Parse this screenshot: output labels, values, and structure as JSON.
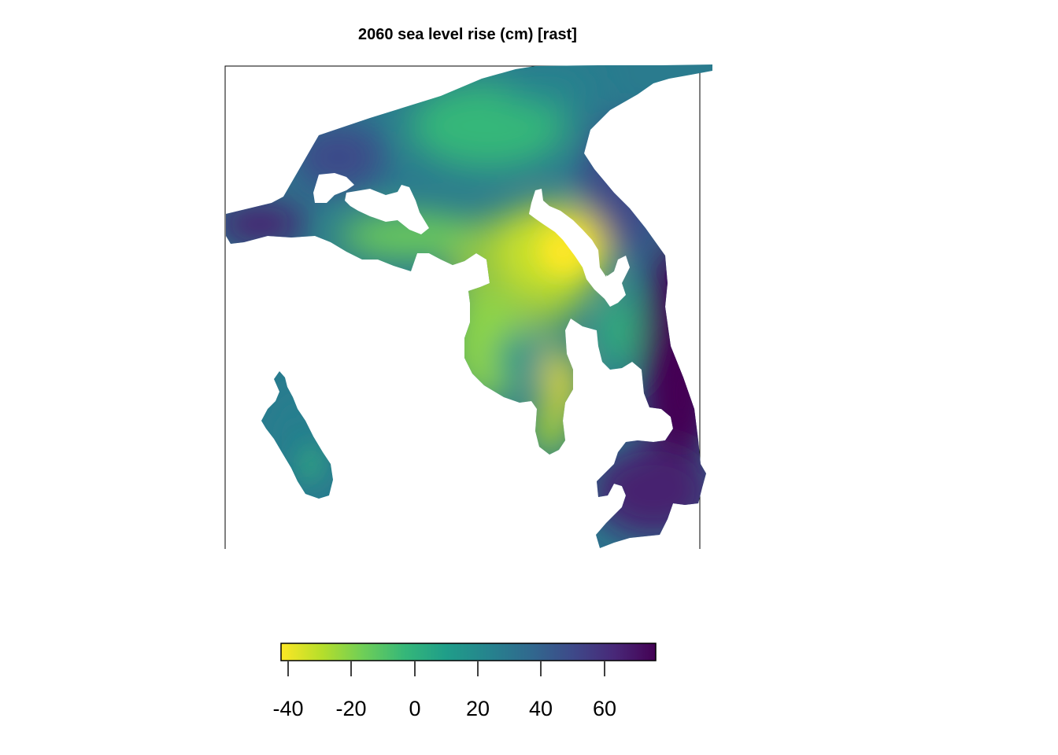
{
  "title": "2060 sea level rise (cm) [rast]",
  "legend": {
    "ticks": [
      -40,
      -20,
      0,
      20,
      40,
      60
    ],
    "tick_labels": [
      "-40",
      "-20",
      "0",
      "20",
      "40",
      "60"
    ],
    "range": [
      -42,
      76
    ],
    "palette": "viridis (reversed): yellow = low, dark purple = high",
    "color_stops": [
      "#fde725",
      "#b5de2b",
      "#6ece58",
      "#35b779",
      "#1f9e89",
      "#26828e",
      "#31688e",
      "#3e4989",
      "#482878",
      "#440154"
    ]
  },
  "chart_data": {
    "type": "heatmap",
    "title": "2060 sea level rise (cm) [rast]",
    "xlabel": "",
    "ylabel": "",
    "value_range": [
      -42,
      76
    ],
    "colorbar_ticks": [
      -40,
      -20,
      0,
      20,
      40,
      60
    ],
    "colorbar_position": "bottom",
    "grid": false,
    "description_of_values": "Raster of sea level rise values over a coastal bay region; low values (about -40, yellow) in the inner bay, high values (about 70, dark purple) along the outer eastern coast."
  }
}
